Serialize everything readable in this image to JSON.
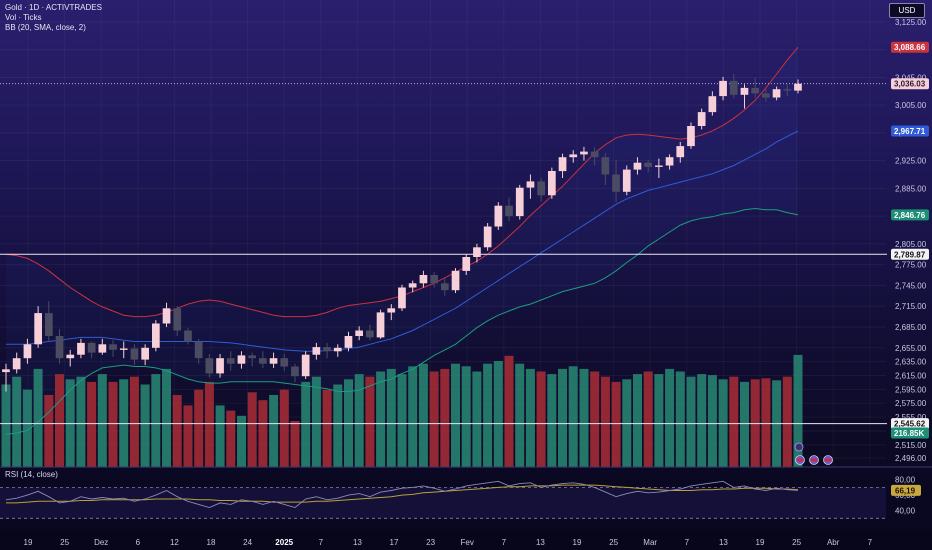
{
  "legend": {
    "symbol_line": "Gold · 1D · ACTIVTRADES",
    "volume_line": "Vol · Ticks",
    "bb_line": "BB (20, SMA, close, 2)",
    "rsi_line": "RSI (14, close)"
  },
  "currency_button": "USD",
  "colors": {
    "up_candle": "#f7cfd8",
    "down_candle": "#4b4b62",
    "volume_up": "#26806f",
    "volume_down": "#9e2b35",
    "bb_upper": "#c9323f",
    "bb_basis": "#2f5bd6",
    "bb_lower": "#1d9c80",
    "rsi_line": "#8c8ab8",
    "rsi_ma": "#b9a13a"
  },
  "chart_data": [
    {
      "type": "candlestick",
      "title": "Gold · 1D · ACTIVTRADES",
      "y_ticks": [
        "3,125.00",
        "3,085.00",
        "3,045.00",
        "3,005.00",
        "2,965.00",
        "2,925.00",
        "2,885.00",
        "2,845.00",
        "2,805.00",
        "2,775.00",
        "2,745.00",
        "2,715.00",
        "2,685.00",
        "2,655.00",
        "2,635.00",
        "2,615.00",
        "2,595.00",
        "2,575.00",
        "2,555.00",
        "2,535.00",
        "2,515.00",
        "2,496.00"
      ],
      "x_ticks": [
        "19",
        "25",
        "Dez",
        "6",
        "12",
        "18",
        "24",
        "2025",
        "7",
        "13",
        "17",
        "23",
        "Fev",
        "7",
        "13",
        "19",
        "25",
        "Mar",
        "7",
        "13",
        "19",
        "25",
        "Abr",
        "7"
      ],
      "price_labels": [
        {
          "text": "3,088.66",
          "role": "bb-upper"
        },
        {
          "text": "3,036.03",
          "role": "last-price"
        },
        {
          "text": "2,967.71",
          "role": "bb-basis"
        },
        {
          "text": "2,846.76",
          "role": "bb-lower"
        },
        {
          "text": "2,789.87",
          "role": "horizontal-line"
        },
        {
          "text": "2,545.62",
          "role": "horizontal-line"
        },
        {
          "text": "216.85K",
          "role": "volume"
        }
      ],
      "horizontal_lines": [
        2789.87,
        2545.62
      ],
      "last_price": 3036.03,
      "ohlc": [
        [
          2620,
          2632,
          2592,
          2624
        ],
        [
          2624,
          2648,
          2618,
          2640
        ],
        [
          2640,
          2668,
          2632,
          2660
        ],
        [
          2660,
          2715,
          2655,
          2705
        ],
        [
          2705,
          2722,
          2665,
          2672
        ],
        [
          2672,
          2682,
          2632,
          2640
        ],
        [
          2640,
          2652,
          2628,
          2645
        ],
        [
          2645,
          2668,
          2640,
          2662
        ],
        [
          2662,
          2664,
          2640,
          2648
        ],
        [
          2648,
          2668,
          2645,
          2660
        ],
        [
          2660,
          2666,
          2642,
          2652
        ],
        [
          2652,
          2664,
          2640,
          2654
        ],
        [
          2654,
          2660,
          2630,
          2638
        ],
        [
          2638,
          2660,
          2630,
          2655
        ],
        [
          2655,
          2695,
          2650,
          2690
        ],
        [
          2690,
          2720,
          2685,
          2712
        ],
        [
          2712,
          2715,
          2672,
          2680
        ],
        [
          2680,
          2684,
          2660,
          2664
        ],
        [
          2664,
          2668,
          2632,
          2640
        ],
        [
          2640,
          2646,
          2612,
          2618
        ],
        [
          2618,
          2646,
          2612,
          2640
        ],
        [
          2640,
          2650,
          2622,
          2632
        ],
        [
          2632,
          2650,
          2625,
          2644
        ],
        [
          2644,
          2648,
          2628,
          2640
        ],
        [
          2640,
          2650,
          2626,
          2632
        ],
        [
          2632,
          2648,
          2626,
          2640
        ],
        [
          2640,
          2646,
          2622,
          2628
        ],
        [
          2628,
          2632,
          2605,
          2614
        ],
        [
          2614,
          2650,
          2610,
          2645
        ],
        [
          2645,
          2662,
          2638,
          2656
        ],
        [
          2656,
          2662,
          2640,
          2650
        ],
        [
          2650,
          2660,
          2642,
          2655
        ],
        [
          2655,
          2678,
          2650,
          2672
        ],
        [
          2672,
          2686,
          2666,
          2680
        ],
        [
          2680,
          2688,
          2666,
          2670
        ],
        [
          2670,
          2710,
          2668,
          2706
        ],
        [
          2706,
          2718,
          2695,
          2712
        ],
        [
          2712,
          2746,
          2708,
          2742
        ],
        [
          2742,
          2752,
          2735,
          2748
        ],
        [
          2748,
          2766,
          2742,
          2760
        ],
        [
          2760,
          2764,
          2742,
          2748
        ],
        [
          2748,
          2756,
          2730,
          2738
        ],
        [
          2738,
          2770,
          2734,
          2766
        ],
        [
          2766,
          2790,
          2760,
          2786
        ],
        [
          2786,
          2805,
          2778,
          2800
        ],
        [
          2800,
          2835,
          2795,
          2830
        ],
        [
          2830,
          2865,
          2825,
          2860
        ],
        [
          2860,
          2872,
          2838,
          2845
        ],
        [
          2845,
          2890,
          2840,
          2886
        ],
        [
          2886,
          2905,
          2870,
          2895
        ],
        [
          2895,
          2900,
          2866,
          2875
        ],
        [
          2875,
          2915,
          2870,
          2910
        ],
        [
          2910,
          2935,
          2900,
          2930
        ],
        [
          2930,
          2940,
          2922,
          2934
        ],
        [
          2934,
          2945,
          2925,
          2938
        ],
        [
          2938,
          2944,
          2918,
          2930
        ],
        [
          2930,
          2936,
          2890,
          2905
        ],
        [
          2905,
          2926,
          2865,
          2880
        ],
        [
          2880,
          2918,
          2875,
          2912
        ],
        [
          2912,
          2930,
          2905,
          2922
        ],
        [
          2922,
          2926,
          2908,
          2916
        ],
        [
          2916,
          2928,
          2900,
          2918
        ],
        [
          2918,
          2934,
          2912,
          2930
        ],
        [
          2930,
          2952,
          2922,
          2946
        ],
        [
          2946,
          2980,
          2942,
          2975
        ],
        [
          2975,
          3000,
          2970,
          2995
        ],
        [
          2995,
          3025,
          2990,
          3018
        ],
        [
          3018,
          3046,
          3012,
          3040
        ],
        [
          3040,
          3050,
          3015,
          3020
        ],
        [
          3020,
          3035,
          3000,
          3030
        ],
        [
          3030,
          3045,
          3015,
          3022
        ],
        [
          3022,
          3028,
          3010,
          3016
        ],
        [
          3016,
          3032,
          3012,
          3028
        ],
        [
          3028,
          3035,
          3018,
          3026
        ],
        [
          3026,
          3042,
          3022,
          3036
        ]
      ],
      "bollinger": {
        "upper": [
          2790,
          2788,
          2784,
          2776,
          2766,
          2754,
          2742,
          2732,
          2722,
          2714,
          2708,
          2702,
          2700,
          2700,
          2702,
          2706,
          2712,
          2718,
          2722,
          2724,
          2722,
          2718,
          2714,
          2710,
          2706,
          2702,
          2700,
          2700,
          2700,
          2702,
          2706,
          2712,
          2716,
          2718,
          2720,
          2722,
          2726,
          2730,
          2736,
          2742,
          2748,
          2756,
          2764,
          2772,
          2780,
          2790,
          2802,
          2816,
          2830,
          2846,
          2860,
          2874,
          2888,
          2904,
          2920,
          2936,
          2948,
          2958,
          2962,
          2963,
          2962,
          2960,
          2958,
          2956,
          2958,
          2962,
          2968,
          2976,
          2986,
          2998,
          3012,
          3030,
          3050,
          3070,
          3088.66
        ],
        "basis": [
          2660,
          2660,
          2660,
          2662,
          2664,
          2666,
          2668,
          2670,
          2670,
          2670,
          2668,
          2666,
          2664,
          2664,
          2664,
          2664,
          2664,
          2664,
          2664,
          2664,
          2663,
          2662,
          2660,
          2658,
          2656,
          2654,
          2652,
          2651,
          2650,
          2650,
          2651,
          2652,
          2654,
          2656,
          2660,
          2664,
          2668,
          2674,
          2680,
          2688,
          2696,
          2704,
          2712,
          2722,
          2732,
          2742,
          2752,
          2762,
          2772,
          2782,
          2792,
          2802,
          2812,
          2822,
          2832,
          2842,
          2852,
          2862,
          2870,
          2876,
          2882,
          2886,
          2890,
          2894,
          2898,
          2902,
          2906,
          2912,
          2918,
          2926,
          2934,
          2942,
          2952,
          2960,
          2967.71
        ],
        "lower": [
          2530,
          2532,
          2536,
          2548,
          2562,
          2578,
          2594,
          2608,
          2618,
          2626,
          2628,
          2630,
          2628,
          2628,
          2626,
          2622,
          2616,
          2610,
          2606,
          2604,
          2604,
          2606,
          2606,
          2606,
          2606,
          2606,
          2604,
          2602,
          2600,
          2598,
          2596,
          2592,
          2592,
          2594,
          2600,
          2606,
          2610,
          2618,
          2624,
          2634,
          2644,
          2652,
          2660,
          2672,
          2684,
          2694,
          2702,
          2708,
          2714,
          2718,
          2724,
          2730,
          2736,
          2740,
          2744,
          2748,
          2756,
          2766,
          2778,
          2789,
          2802,
          2812,
          2822,
          2832,
          2838,
          2842,
          2844,
          2848,
          2850,
          2854,
          2856,
          2854,
          2854,
          2850,
          2846.76
        ]
      },
      "volume": {
        "values": [
          160,
          175,
          150,
          190,
          140,
          180,
          170,
          175,
          165,
          180,
          165,
          170,
          175,
          160,
          180,
          190,
          140,
          120,
          150,
          165,
          120,
          110,
          100,
          145,
          130,
          140,
          150,
          90,
          165,
          175,
          150,
          160,
          170,
          180,
          175,
          185,
          190,
          180,
          195,
          200,
          185,
          190,
          200,
          195,
          185,
          200,
          205,
          215,
          200,
          190,
          185,
          180,
          190,
          195,
          190,
          185,
          175,
          165,
          170,
          180,
          185,
          180,
          190,
          185,
          175,
          180,
          178,
          170,
          175,
          165,
          170,
          172,
          168,
          175,
          216.85
        ],
        "up": [
          true,
          true,
          true,
          true,
          false,
          false,
          true,
          true,
          false,
          true,
          false,
          true,
          false,
          true,
          true,
          true,
          false,
          false,
          false,
          false,
          true,
          false,
          true,
          false,
          false,
          true,
          false,
          false,
          true,
          true,
          false,
          true,
          true,
          true,
          false,
          true,
          true,
          true,
          true,
          true,
          false,
          false,
          true,
          true,
          true,
          true,
          true,
          false,
          true,
          true,
          false,
          true,
          true,
          true,
          true,
          false,
          false,
          false,
          true,
          true,
          false,
          true,
          true,
          true,
          true,
          true,
          true,
          true,
          false,
          true,
          false,
          false,
          true,
          false,
          true
        ],
        "unit": "K"
      }
    },
    {
      "type": "line",
      "title": "RSI (14, close)",
      "y_ticks": [
        "80,00",
        "66,19",
        "60,00",
        "40,00"
      ],
      "last_value_label": "66,19",
      "levels": [
        70,
        30
      ],
      "ylim": [
        20,
        90
      ],
      "series": [
        {
          "role": "rsi",
          "values": [
            54,
            56,
            60,
            65,
            58,
            50,
            52,
            58,
            55,
            57,
            55,
            56,
            52,
            55,
            60,
            66,
            58,
            52,
            48,
            44,
            50,
            48,
            54,
            52,
            48,
            52,
            48,
            44,
            55,
            58,
            54,
            56,
            60,
            62,
            58,
            64,
            66,
            69,
            70,
            72,
            69,
            65,
            68,
            72,
            74,
            76,
            78,
            72,
            75,
            76,
            70,
            73,
            75,
            76,
            74,
            70,
            64,
            58,
            62,
            65,
            63,
            64,
            66,
            68,
            72,
            74,
            76,
            78,
            70,
            72,
            68,
            66,
            69,
            67,
            66.19
          ]
        },
        {
          "role": "rsi-ma",
          "values": [
            50,
            50,
            51,
            52,
            52,
            52,
            52,
            53,
            53,
            54,
            54,
            54,
            54,
            54,
            55,
            55,
            55,
            55,
            54,
            54,
            53,
            53,
            52,
            52,
            52,
            51,
            51,
            51,
            51,
            52,
            52,
            53,
            54,
            55,
            56,
            57,
            58,
            60,
            61,
            63,
            64,
            65,
            66,
            67,
            68,
            69,
            70,
            71,
            71,
            72,
            72,
            72,
            73,
            73,
            73,
            73,
            72,
            71,
            70,
            69,
            68,
            67,
            66,
            66,
            66,
            67,
            67,
            68,
            68,
            69,
            69,
            69,
            68,
            68,
            67
          ]
        }
      ]
    }
  ]
}
